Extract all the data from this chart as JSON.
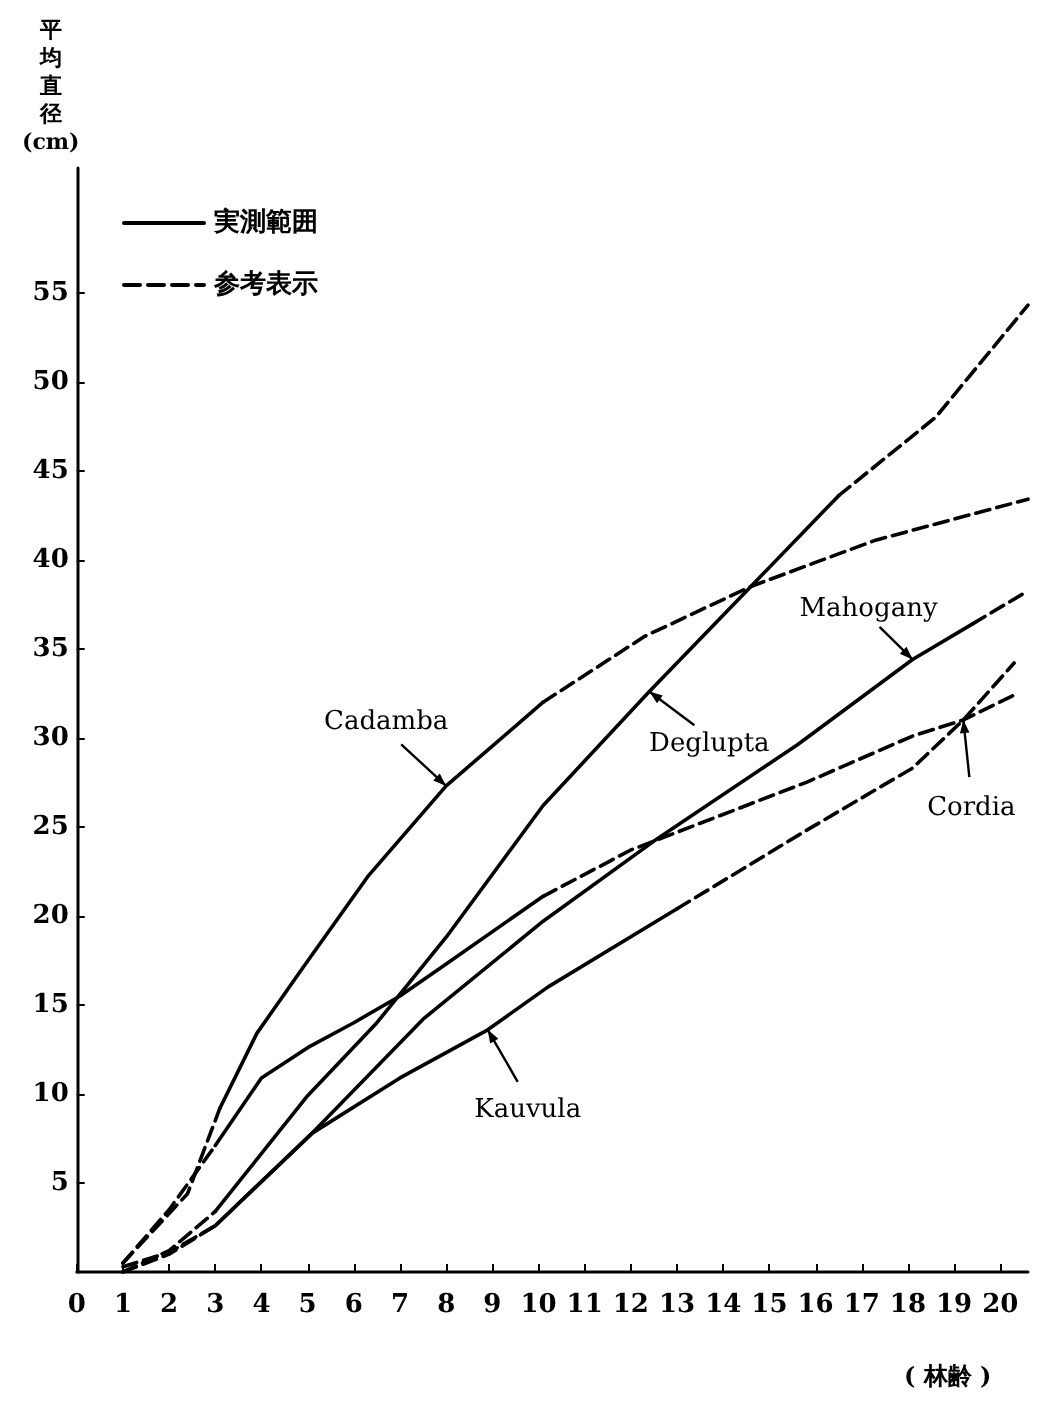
{
  "chart_data": {
    "type": "line",
    "ylabel": "平均直径(cm)",
    "xlabel": "( 林齢 )",
    "xlim": [
      0,
      20.6
    ],
    "xticks": [
      0,
      1,
      2,
      3,
      4,
      5,
      6,
      7,
      8,
      9,
      10,
      11,
      12,
      13,
      14,
      15,
      16,
      17,
      18,
      19,
      20
    ],
    "ylim": [
      0,
      62
    ],
    "yticks": [
      5,
      10,
      15,
      20,
      25,
      30,
      35,
      40,
      45,
      50,
      55
    ],
    "grid": false,
    "legend": "top left",
    "marker": "none",
    "series": [
      {
        "name": "実測範囲",
        "color": "#000000",
        "line_style": "solid",
        "x": [
          3.1,
          3.9,
          4.9,
          6.3,
          8,
          10.1
        ],
        "values": [
          9.2,
          13.4,
          17.1,
          22.2,
          27.3,
          32
        ]
      },
      {
        "name": "参考表示",
        "color": "#000000",
        "line_style": "dashed",
        "x": [
          1,
          2.4,
          3.1
        ],
        "values": [
          0.5,
          4.4,
          9.2
        ]
      },
      {
        "color": "#000000",
        "line_style": "dashed",
        "x": [
          10.1,
          12.3,
          14.6,
          17.3,
          20.6
        ],
        "values": [
          32,
          35.7,
          38.5,
          41.1,
          43.4
        ]
      },
      {
        "color": "#000000",
        "line_style": "dashed",
        "x": [
          1,
          2,
          3
        ],
        "values": [
          0,
          1.2,
          3.4
        ]
      },
      {
        "color": "#000000",
        "line_style": "solid",
        "x": [
          3,
          5,
          6.5,
          8,
          10.1,
          12.4,
          14.6,
          16.5
        ],
        "values": [
          3.4,
          9.9,
          14,
          18.8,
          26.2,
          32.6,
          38.5,
          43.6
        ]
      },
      {
        "color": "#000000",
        "line_style": "dashed",
        "x": [
          16.5,
          18.6,
          20.6
        ],
        "values": [
          43.6,
          48,
          54.3
        ]
      },
      {
        "color": "#000000",
        "line_style": "dashed",
        "x": [
          1,
          2,
          3
        ],
        "values": [
          0.3,
          1.1,
          2.6
        ]
      },
      {
        "color": "#000000",
        "line_style": "solid",
        "x": [
          3,
          5.1,
          7.5,
          10.1,
          12.5,
          15.6,
          18.1,
          19.4
        ],
        "values": [
          2.6,
          7.8,
          14.2,
          19.7,
          24.2,
          29.6,
          34.4,
          36.4
        ]
      },
      {
        "color": "#000000",
        "line_style": "dashed",
        "x": [
          19.4,
          20.5
        ],
        "values": [
          36.4,
          38.1
        ]
      },
      {
        "color": "#000000",
        "line_style": "dashed",
        "x": [
          1,
          2,
          3
        ],
        "values": [
          0.5,
          3.5,
          7.1
        ]
      },
      {
        "color": "#000000",
        "line_style": "solid",
        "x": [
          3,
          4,
          5,
          6,
          7,
          8,
          10.1
        ],
        "values": [
          7.1,
          10.9,
          12.6,
          14,
          15.5,
          17.3,
          21.1
        ]
      },
      {
        "color": "#000000",
        "line_style": "dashed",
        "x": [
          10.1,
          12,
          15.8,
          18.1,
          19.2,
          20.3
        ],
        "values": [
          21.1,
          23.7,
          27.5,
          30.1,
          31,
          32.4
        ]
      },
      {
        "color": "#000000",
        "line_style": "dashed",
        "x": [
          1,
          2,
          3
        ],
        "values": [
          0,
          1,
          2.6
        ]
      },
      {
        "color": "#000000",
        "line_style": "solid",
        "x": [
          3,
          5.1,
          7,
          8.9,
          10.2,
          13
        ],
        "values": [
          2.6,
          7.8,
          10.9,
          13.6,
          16,
          20.4
        ]
      },
      {
        "color": "#000000",
        "line_style": "dashed",
        "x": [
          13,
          15.8,
          18.1,
          19.2,
          20.3
        ],
        "values": [
          20.4,
          24.8,
          28.3,
          31,
          34.2
        ]
      }
    ],
    "annotations": [
      {
        "text": "Cadamba",
        "x": 8,
        "y": 27.3
      },
      {
        "text": "Deglupta",
        "x": 12.4,
        "y": 32.6
      },
      {
        "text": "Mahogany",
        "x": 18.1,
        "y": 34.4
      },
      {
        "text": "Cordia",
        "x": 19.2,
        "y": 31
      },
      {
        "text": "Kauvula",
        "x": 8.9,
        "y": 13.6
      }
    ]
  }
}
